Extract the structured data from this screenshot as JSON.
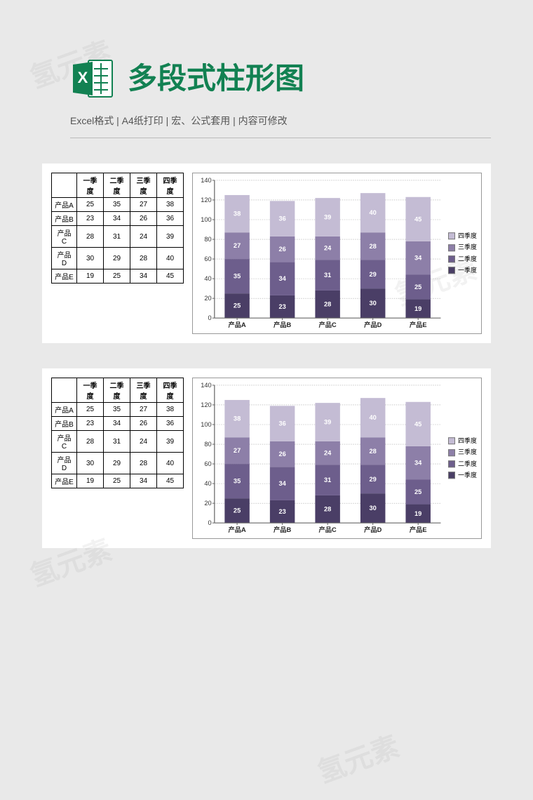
{
  "header": {
    "title": "多段式柱形图",
    "subtitle": "Excel格式 |  A4纸打印 | 宏、公式套用 | 内容可修改",
    "title_color": "#128152"
  },
  "watermark_text": "氢元素",
  "table": {
    "columns": [
      "",
      "一季度",
      "二季度",
      "三季度",
      "四季度"
    ],
    "rows": [
      [
        "产品A",
        25,
        35,
        27,
        38
      ],
      [
        "产品B",
        23,
        34,
        26,
        36
      ],
      [
        "产品C",
        28,
        31,
        24,
        39
      ],
      [
        "产品D",
        30,
        29,
        28,
        40
      ],
      [
        "产品E",
        19,
        25,
        34,
        45
      ]
    ]
  },
  "chart": {
    "type": "stacked-bar",
    "categories": [
      "产品A",
      "产品B",
      "产品C",
      "产品D",
      "产品E"
    ],
    "series": [
      {
        "name": "一季度",
        "color": "#4a3e66",
        "values": [
          25,
          23,
          28,
          30,
          19
        ]
      },
      {
        "name": "二季度",
        "color": "#6d5e8c",
        "values": [
          35,
          34,
          31,
          29,
          25
        ]
      },
      {
        "name": "三季度",
        "color": "#8d7fa8",
        "values": [
          27,
          26,
          24,
          28,
          34
        ]
      },
      {
        "name": "四季度",
        "color": "#c4bcd4",
        "values": [
          38,
          36,
          39,
          40,
          45
        ]
      }
    ],
    "ylim": [
      0,
      140
    ],
    "ytick_step": 20,
    "bar_width_ratio": 0.55,
    "grid_color": "#aaaaaa",
    "axis_color": "#666666",
    "data_label_color": "#ffffff",
    "data_label_fontsize": 9,
    "axis_label_fontsize": 9,
    "tick_fontsize": 9,
    "background_color": "#ffffff",
    "legend_order": [
      "四季度",
      "三季度",
      "二季度",
      "一季度"
    ]
  }
}
